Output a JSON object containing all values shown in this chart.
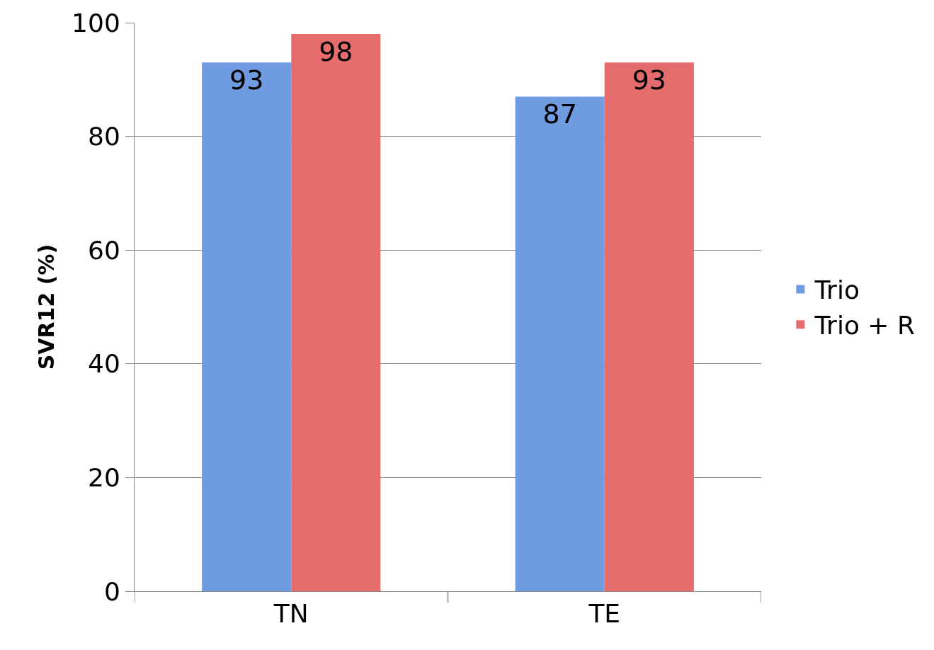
{
  "chart_data": {
    "type": "bar",
    "ylabel": "SVR12 (%)",
    "categories": [
      "TN",
      "TE"
    ],
    "series": [
      {
        "name": "Trio",
        "color": "#6f9be0",
        "values": [
          93,
          87
        ]
      },
      {
        "name": "Trio + R",
        "color": "#e46c6c",
        "values": [
          98,
          93
        ]
      }
    ],
    "ylim": [
      0,
      100
    ],
    "yticks": [
      0,
      20,
      40,
      60,
      80,
      100
    ],
    "grid": "y",
    "legend": "right",
    "data_labels": true
  }
}
